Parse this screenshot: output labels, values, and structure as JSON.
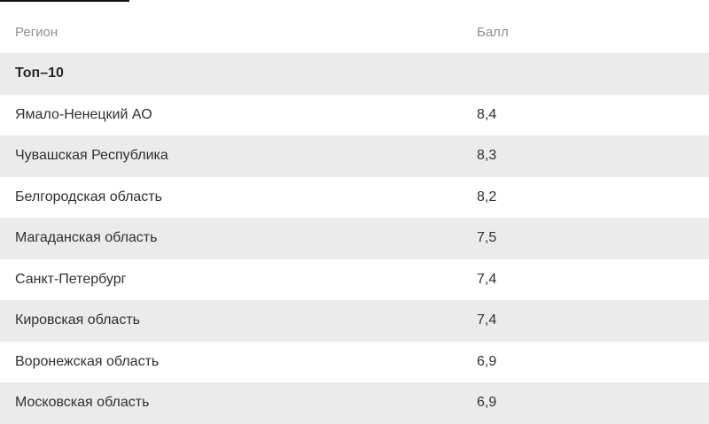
{
  "page": {
    "accent_line_color": "#141414",
    "row_alt_bg": "#ebebeb",
    "header_text_color": "#8f8f8f",
    "cell_text_color": "#303030"
  },
  "table": {
    "columns": [
      {
        "key": "region",
        "label": "Регион"
      },
      {
        "key": "score",
        "label": "Балл"
      }
    ],
    "section": {
      "label": "Топ–10"
    },
    "rows": [
      {
        "region": "Ямало-Ненецкий АО",
        "score": "8,4"
      },
      {
        "region": "Чувашская Республика",
        "score": "8,3"
      },
      {
        "region": "Белгородская область",
        "score": "8,2"
      },
      {
        "region": "Магаданская область",
        "score": "7,5"
      },
      {
        "region": "Санкт-Петербург",
        "score": "7,4"
      },
      {
        "region": "Кировская область",
        "score": "7,4"
      },
      {
        "region": "Воронежская область",
        "score": "6,9"
      },
      {
        "region": "Московская область",
        "score": "6,9",
        "partially_visible": true
      }
    ]
  },
  "chart_data": {
    "type": "table",
    "title": "",
    "columns": [
      "Регион",
      "Балл"
    ],
    "section": "Топ–10",
    "rows": [
      [
        "Ямало-Ненецкий АО",
        8.4
      ],
      [
        "Чувашская Республика",
        8.3
      ],
      [
        "Белгородская область",
        8.2
      ],
      [
        "Магаданская область",
        7.5
      ],
      [
        "Санкт-Петербург",
        7.4
      ],
      [
        "Кировская область",
        7.4
      ],
      [
        "Воронежская область",
        6.9
      ],
      [
        "Московская область",
        6.9
      ]
    ],
    "notes": "Last row clipped at bottom edge of screenshot; decimal values displayed with comma separator."
  }
}
